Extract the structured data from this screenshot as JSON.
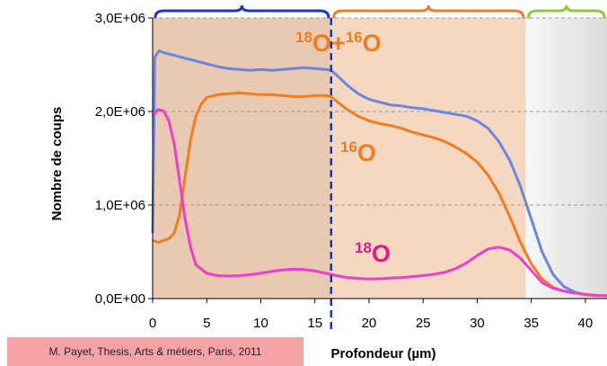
{
  "chart_data": {
    "type": "line",
    "ylabel": "Nombre de coups",
    "xlabel": "Profondeur (µm)",
    "x_ticks": [
      "0",
      "5",
      "10",
      "15",
      "20",
      "25",
      "30",
      "35",
      "40"
    ],
    "y_ticks": [
      "0,0E+00",
      "1,0E+06",
      "2,0E+06",
      "3,0E+06"
    ],
    "xlim": [
      0,
      42
    ],
    "ylim": [
      0,
      3000000
    ],
    "grid": "horizontal dashed",
    "regions": [
      {
        "x": [
          0,
          16.5
        ],
        "brace_color": "#2233cc",
        "fill": "#e9c9b0"
      },
      {
        "x": [
          16.5,
          34.5
        ],
        "brace_color": "#f07d22",
        "fill": "#f4d8c2"
      },
      {
        "x": [
          34.5,
          42
        ],
        "brace_color": "#8cc63f",
        "fill": "#f0f0f0"
      }
    ],
    "marker_line": {
      "x": 16.5,
      "color": "#1133dd"
    },
    "series": [
      {
        "name": "18O+16O",
        "color": "#6b86e0",
        "label_parts": {
          "sup1": "18",
          "base1": "O+",
          "sup2": "16",
          "base2": "O"
        },
        "label_color": "#f07d22",
        "points": [
          [
            0,
            700000
          ],
          [
            0.2,
            2580000
          ],
          [
            0.6,
            2650000
          ],
          [
            1,
            2630000
          ],
          [
            2,
            2600000
          ],
          [
            3,
            2570000
          ],
          [
            4,
            2540000
          ],
          [
            5,
            2510000
          ],
          [
            6,
            2480000
          ],
          [
            7,
            2460000
          ],
          [
            8,
            2450000
          ],
          [
            9,
            2440000
          ],
          [
            10,
            2450000
          ],
          [
            11,
            2440000
          ],
          [
            12,
            2450000
          ],
          [
            13,
            2460000
          ],
          [
            14,
            2470000
          ],
          [
            15,
            2460000
          ],
          [
            16,
            2450000
          ],
          [
            16.5,
            2440000
          ],
          [
            17,
            2390000
          ],
          [
            18,
            2280000
          ],
          [
            19,
            2190000
          ],
          [
            20,
            2130000
          ],
          [
            21,
            2100000
          ],
          [
            22,
            2070000
          ],
          [
            23,
            2060000
          ],
          [
            24,
            2040000
          ],
          [
            25,
            2030000
          ],
          [
            26,
            2010000
          ],
          [
            27,
            1990000
          ],
          [
            28,
            1970000
          ],
          [
            29,
            1950000
          ],
          [
            30,
            1900000
          ],
          [
            31,
            1820000
          ],
          [
            32,
            1680000
          ],
          [
            33,
            1480000
          ],
          [
            34,
            1200000
          ],
          [
            35,
            850000
          ],
          [
            36,
            500000
          ],
          [
            37,
            260000
          ],
          [
            38,
            130000
          ],
          [
            39,
            70000
          ],
          [
            40,
            40000
          ],
          [
            41,
            30000
          ],
          [
            42,
            30000
          ]
        ]
      },
      {
        "name": "16O",
        "color": "#f07d22",
        "label_parts": {
          "sup1": "16",
          "base1": "O"
        },
        "label_color": "#f07d22",
        "points": [
          [
            0,
            620000
          ],
          [
            0.5,
            600000
          ],
          [
            1,
            620000
          ],
          [
            1.5,
            640000
          ],
          [
            2,
            700000
          ],
          [
            2.5,
            900000
          ],
          [
            3,
            1300000
          ],
          [
            3.5,
            1700000
          ],
          [
            4,
            1950000
          ],
          [
            4.5,
            2080000
          ],
          [
            5,
            2150000
          ],
          [
            6,
            2180000
          ],
          [
            7,
            2190000
          ],
          [
            8,
            2200000
          ],
          [
            9,
            2190000
          ],
          [
            10,
            2180000
          ],
          [
            11,
            2180000
          ],
          [
            12,
            2170000
          ],
          [
            13,
            2160000
          ],
          [
            14,
            2160000
          ],
          [
            15,
            2170000
          ],
          [
            16,
            2170000
          ],
          [
            16.5,
            2160000
          ],
          [
            17,
            2110000
          ],
          [
            18,
            2020000
          ],
          [
            19,
            1950000
          ],
          [
            20,
            1900000
          ],
          [
            21,
            1870000
          ],
          [
            22,
            1850000
          ],
          [
            23,
            1820000
          ],
          [
            24,
            1780000
          ],
          [
            25,
            1750000
          ],
          [
            26,
            1720000
          ],
          [
            27,
            1680000
          ],
          [
            28,
            1620000
          ],
          [
            29,
            1550000
          ],
          [
            30,
            1460000
          ],
          [
            31,
            1320000
          ],
          [
            32,
            1130000
          ],
          [
            33,
            880000
          ],
          [
            34,
            600000
          ],
          [
            35,
            370000
          ],
          [
            36,
            210000
          ],
          [
            37,
            120000
          ],
          [
            38,
            80000
          ],
          [
            39,
            60000
          ],
          [
            40,
            40000
          ],
          [
            41,
            30000
          ],
          [
            42,
            30000
          ]
        ]
      },
      {
        "name": "18O",
        "color": "#ee3fcc",
        "label_parts": {
          "sup1": "18",
          "base1": "O"
        },
        "label_color": "#e6198c",
        "points": [
          [
            0,
            1950000
          ],
          [
            0.5,
            2020000
          ],
          [
            1,
            2010000
          ],
          [
            1.5,
            1900000
          ],
          [
            2,
            1650000
          ],
          [
            2.5,
            1250000
          ],
          [
            3,
            850000
          ],
          [
            3.5,
            550000
          ],
          [
            4,
            360000
          ],
          [
            5,
            270000
          ],
          [
            6,
            245000
          ],
          [
            7,
            240000
          ],
          [
            8,
            245000
          ],
          [
            9,
            255000
          ],
          [
            10,
            270000
          ],
          [
            11,
            290000
          ],
          [
            12,
            305000
          ],
          [
            13,
            315000
          ],
          [
            14,
            310000
          ],
          [
            15,
            295000
          ],
          [
            16,
            270000
          ],
          [
            17,
            245000
          ],
          [
            18,
            225000
          ],
          [
            19,
            215000
          ],
          [
            20,
            210000
          ],
          [
            21,
            212000
          ],
          [
            22,
            218000
          ],
          [
            23,
            225000
          ],
          [
            24,
            235000
          ],
          [
            25,
            245000
          ],
          [
            26,
            260000
          ],
          [
            27,
            280000
          ],
          [
            28,
            320000
          ],
          [
            29,
            380000
          ],
          [
            30,
            460000
          ],
          [
            31,
            530000
          ],
          [
            32,
            550000
          ],
          [
            33,
            520000
          ],
          [
            34,
            430000
          ],
          [
            35,
            300000
          ],
          [
            36,
            170000
          ],
          [
            37,
            110000
          ],
          [
            38,
            80000
          ],
          [
            39,
            60000
          ],
          [
            40,
            45000
          ],
          [
            41,
            35000
          ],
          [
            42,
            30000
          ]
        ]
      }
    ]
  },
  "citation": "M. Payet, Thesis, Arts & métiers, Paris, 2011"
}
